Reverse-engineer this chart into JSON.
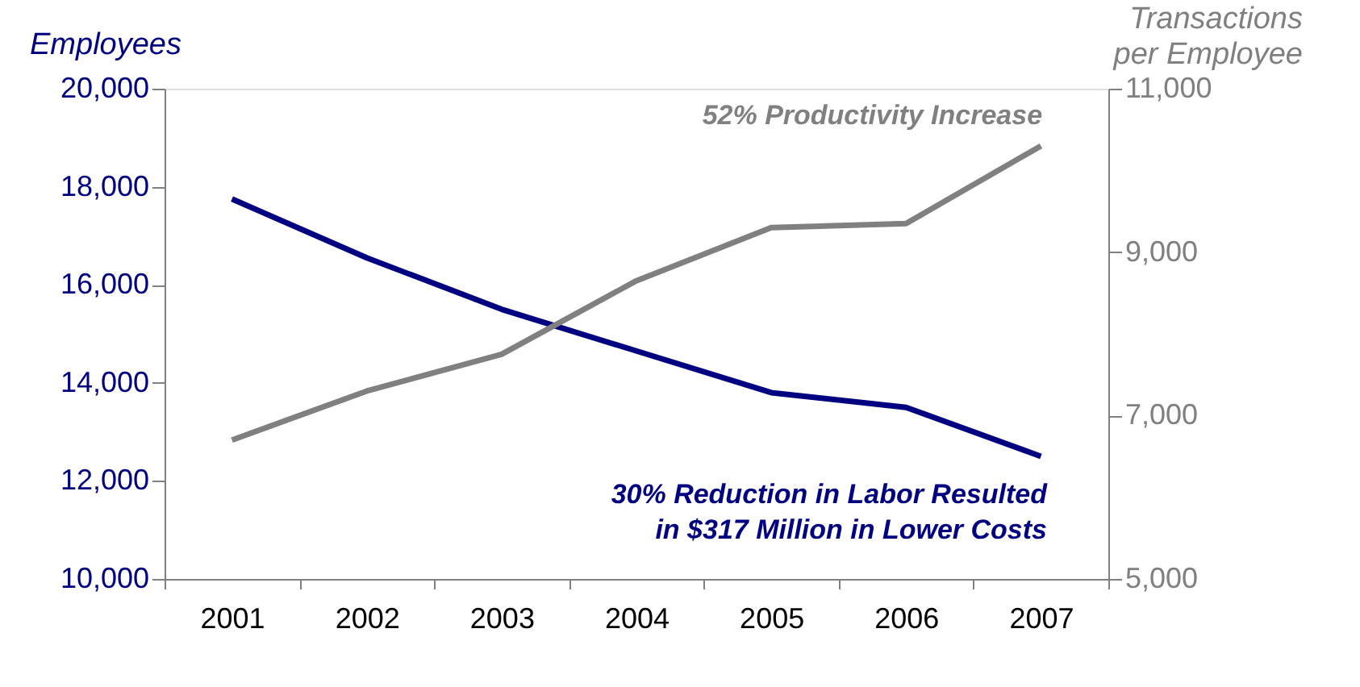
{
  "chart_data": {
    "type": "line",
    "categories": [
      "2001",
      "2002",
      "2003",
      "2004",
      "2005",
      "2006",
      "2007"
    ],
    "ylabel": "Employees",
    "y2label": "Transactions per Employee",
    "ylim": [
      10000,
      20000
    ],
    "yticks": [
      {
        "value": 10000,
        "label": "10,000"
      },
      {
        "value": 12000,
        "label": "12,000"
      },
      {
        "value": 14000,
        "label": "14,000"
      },
      {
        "value": 16000,
        "label": "16,000"
      },
      {
        "value": 18000,
        "label": "18,000"
      },
      {
        "value": 20000,
        "label": "20,000"
      }
    ],
    "y2lim": [
      5000,
      11000
    ],
    "y2ticks": [
      {
        "value": 5000,
        "label": "5,000"
      },
      {
        "value": 7000,
        "label": "7,000"
      },
      {
        "value": 9000,
        "label": "9,000"
      },
      {
        "value": 11000,
        "label": "11,000"
      }
    ],
    "series": [
      {
        "color": "#000080",
        "values": [
          17750,
          16550,
          15500,
          14650,
          13800,
          13500,
          12500
        ]
      },
      {
        "color": "#808080",
        "axis": "y2",
        "values": [
          6700,
          7300,
          7750,
          8650,
          9300,
          9350,
          10300
        ]
      }
    ],
    "annotations": [
      "52% Productivity Increase",
      "30% Reduction in Labor Resulted in $317 Million in Lower Costs"
    ],
    "grid": false
  }
}
